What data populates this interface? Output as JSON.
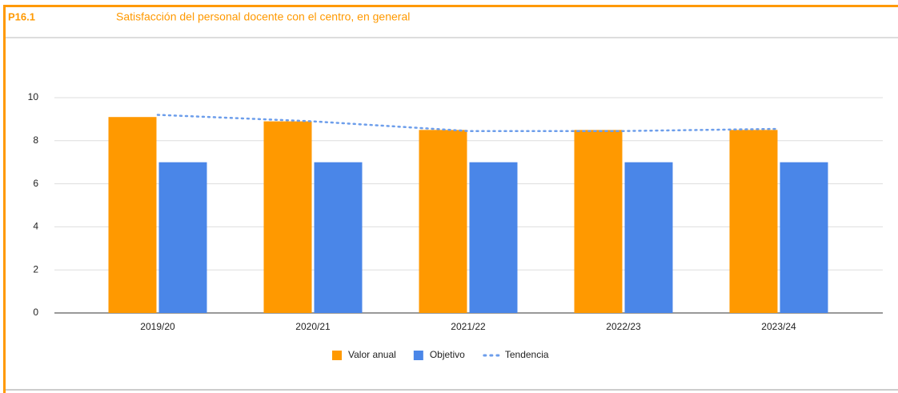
{
  "header": {
    "code": "P16.1",
    "title": "Satisfacción del personal docente con el centro, en general"
  },
  "chart_data": {
    "type": "bar",
    "categories": [
      "2019/20",
      "2020/21",
      "2021/22",
      "2022/23",
      "2023/24"
    ],
    "series": [
      {
        "name": "Valor anual",
        "color": "#ff9900",
        "values": [
          9.1,
          8.9,
          8.5,
          8.5,
          8.5
        ]
      },
      {
        "name": "Objetivo",
        "color": "#4a86e8",
        "values": [
          7,
          7,
          7,
          7,
          7
        ]
      },
      {
        "name": "Tendencia",
        "color": "#6d9eeb",
        "type": "line",
        "values": [
          9.2,
          8.9,
          8.45,
          8.45,
          8.55
        ]
      }
    ],
    "ylim": [
      0,
      10
    ],
    "yticks": [
      0,
      2,
      4,
      6,
      8,
      10
    ],
    "grid": true,
    "legend": "bottom"
  }
}
